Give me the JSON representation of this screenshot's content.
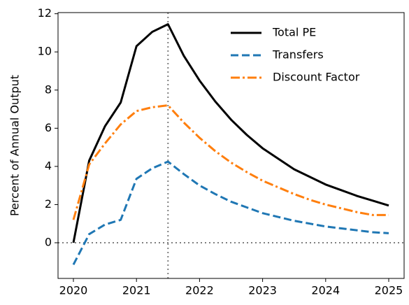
{
  "chart_data": {
    "type": "line",
    "ylabel": "Percent of Annual Output",
    "x": [
      2020,
      2020.25,
      2020.5,
      2020.75,
      2021,
      2021.25,
      2021.5,
      2021.75,
      2022,
      2022.25,
      2022.5,
      2022.75,
      2023,
      2023.25,
      2023.5,
      2023.75,
      2024,
      2024.25,
      2024.5,
      2024.75,
      2025
    ],
    "series": [
      {
        "name": "Total PE",
        "color": "#000000",
        "dash": "solid",
        "values": [
          0,
          4.3,
          6.1,
          7.35,
          10.3,
          11.05,
          11.45,
          9.8,
          8.5,
          7.4,
          6.45,
          5.65,
          4.95,
          4.4,
          3.85,
          3.45,
          3.05,
          2.75,
          2.45,
          2.2,
          1.95
        ]
      },
      {
        "name": "Transfers",
        "color": "#1f77b4",
        "dash": "dashed",
        "values": [
          -1.15,
          0.45,
          0.95,
          1.2,
          3.35,
          3.9,
          4.25,
          3.6,
          3.0,
          2.55,
          2.15,
          1.85,
          1.55,
          1.35,
          1.15,
          1.0,
          0.85,
          0.75,
          0.65,
          0.55,
          0.5
        ]
      },
      {
        "name": "Discount Factor",
        "color": "#ff7f0e",
        "dash": "dashdot",
        "values": [
          1.2,
          4.1,
          5.2,
          6.2,
          6.9,
          7.1,
          7.2,
          6.3,
          5.5,
          4.8,
          4.2,
          3.7,
          3.25,
          2.9,
          2.55,
          2.25,
          2.0,
          1.8,
          1.6,
          1.45,
          1.45
        ]
      }
    ],
    "xlim": [
      2019.756,
      2025.244
    ],
    "ylim": [
      -1.87,
      12.06
    ],
    "xticks": [
      2020,
      2021,
      2022,
      2023,
      2024,
      2025
    ],
    "yticks": [
      0,
      2,
      4,
      6,
      8,
      10,
      12
    ],
    "vline": 2021.5,
    "hline": 0,
    "legend": "upper right"
  }
}
